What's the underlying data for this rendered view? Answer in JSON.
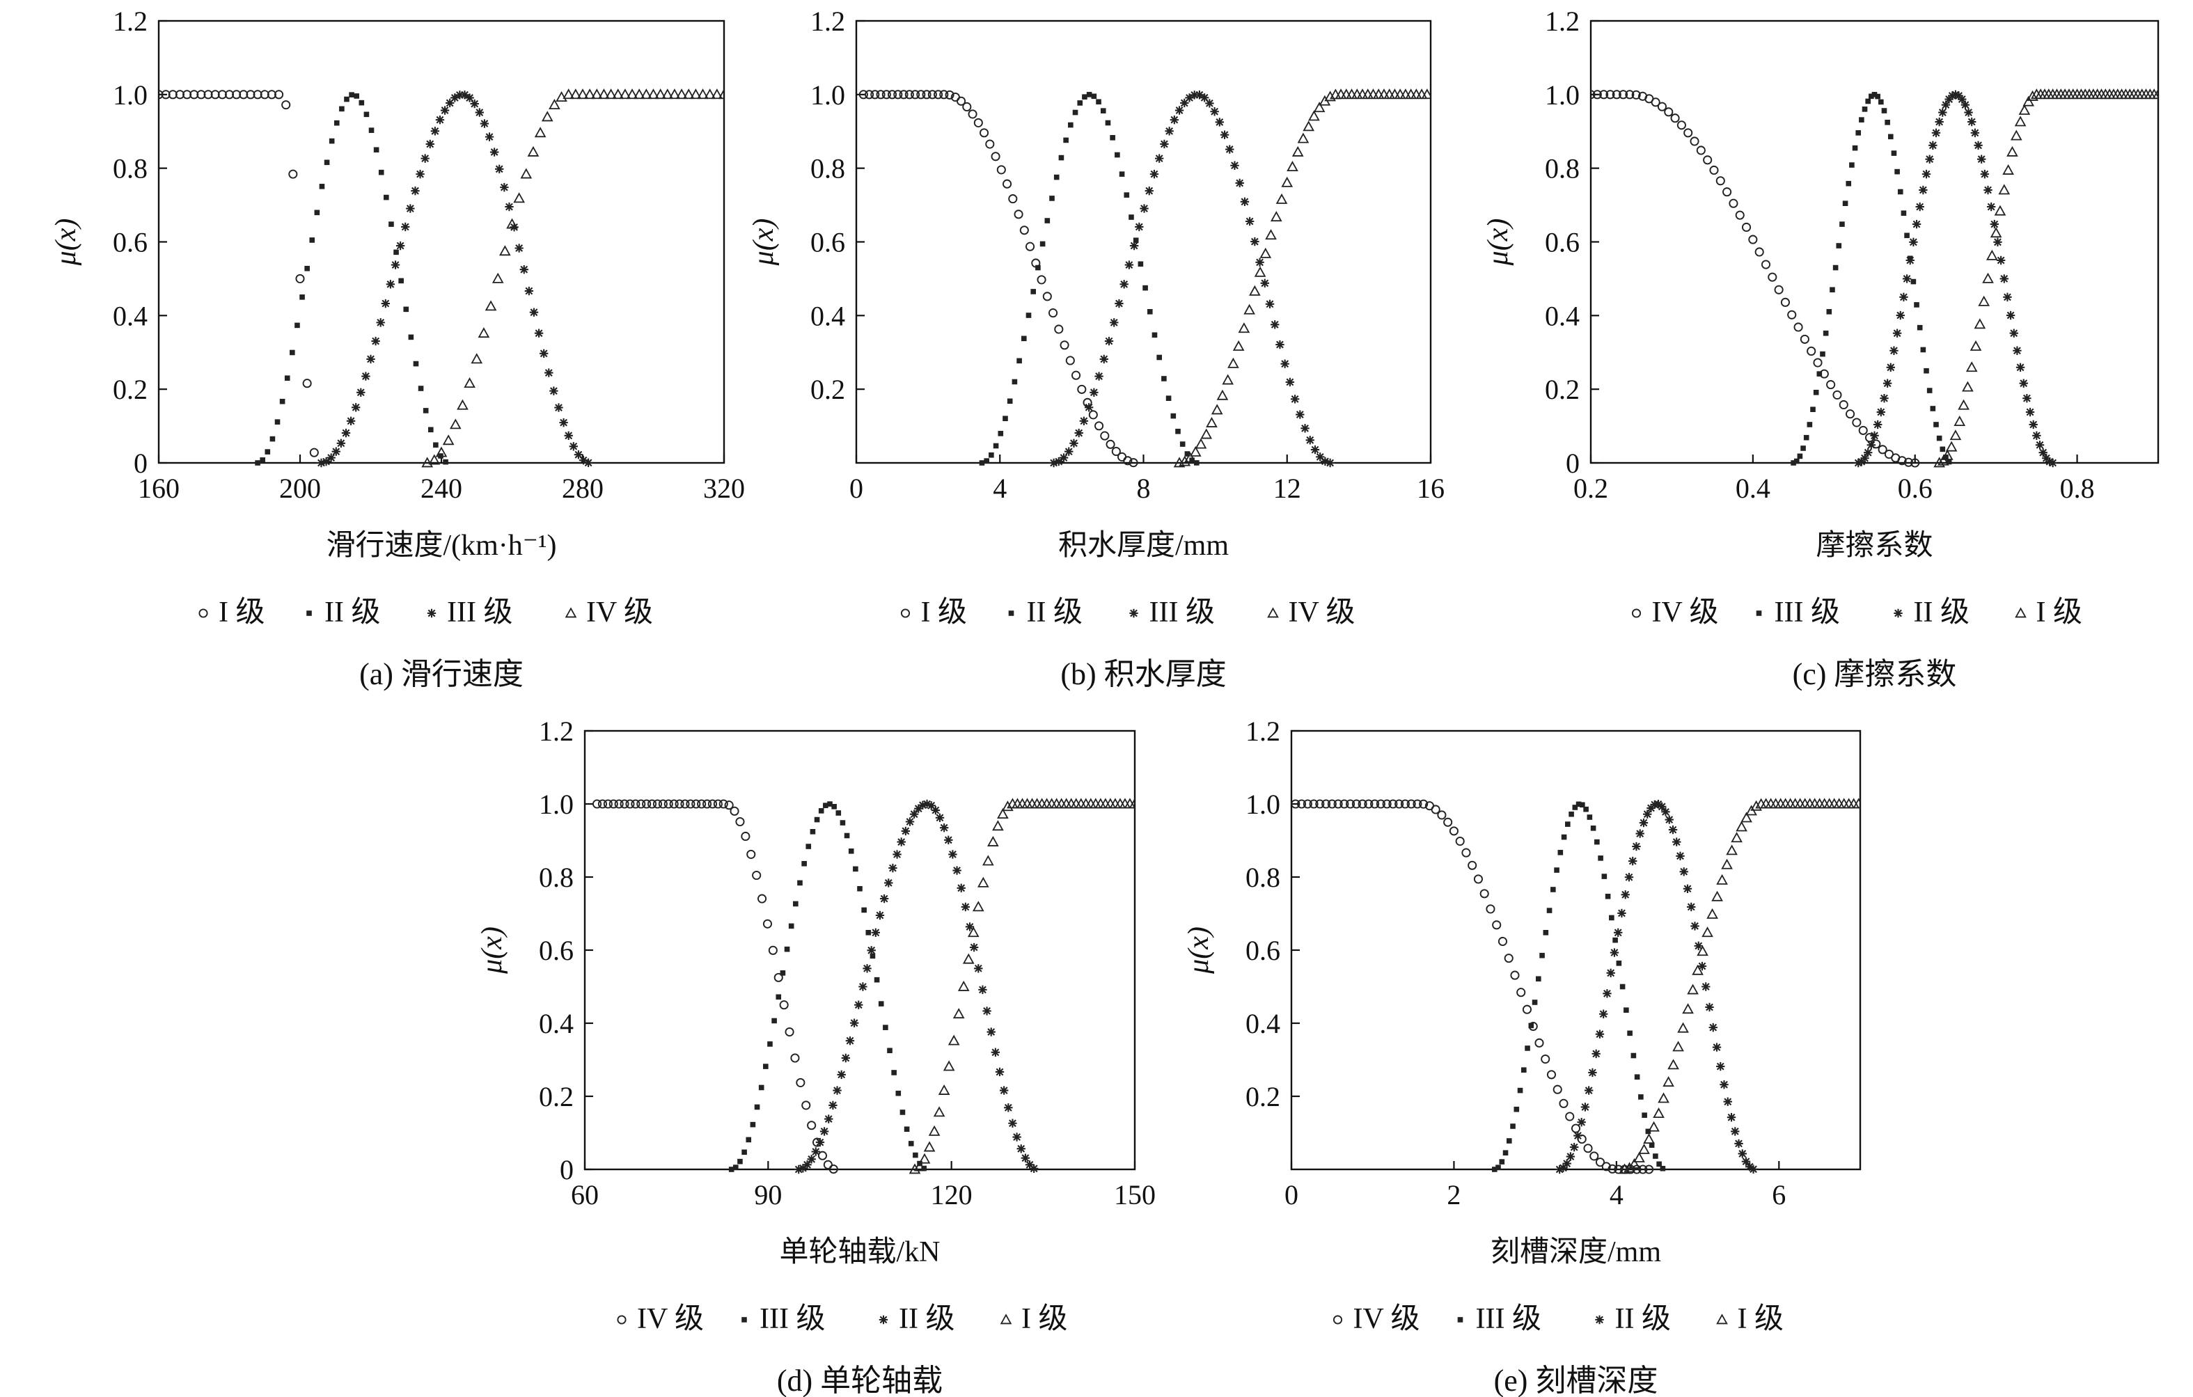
{
  "chart_data": [
    {
      "id": "a",
      "type": "scatter",
      "xlabel": "滑行速度/(km·h⁻¹)",
      "ylabel": "μ(x)",
      "xlim": [
        160,
        320
      ],
      "ylim": [
        0,
        1.2
      ],
      "xticks": [
        160,
        200,
        240,
        280,
        320
      ],
      "yticks": [
        0,
        0.2,
        0.4,
        0.6,
        0.8,
        1.0,
        1.2
      ],
      "ytick_labels": [
        "0",
        "0.2",
        "0.4",
        "0.6",
        "0.8",
        "1.0",
        "1.2"
      ],
      "caption": "(a) 滑行速度",
      "grid": false,
      "legend_position": "below",
      "series": [
        {
          "name": "I 级",
          "marker": "circle",
          "shape": "zfall",
          "a": 195,
          "b": 205,
          "range": [
            160,
            205
          ],
          "step": 2
        },
        {
          "name": "II 级",
          "marker": "square",
          "shape": "bell",
          "center": 215,
          "left_zero": 188,
          "right_zero": 242,
          "range": [
            188,
            242
          ],
          "step": 1.4
        },
        {
          "name": "III 级",
          "marker": "star",
          "shape": "bell",
          "center": 246,
          "left_zero": 206,
          "right_zero": 282,
          "range": [
            206,
            282
          ],
          "step": 1.4
        },
        {
          "name": "IV 级",
          "marker": "triangle",
          "shape": "srise",
          "a": 236,
          "b": 276,
          "range": [
            236,
            320
          ],
          "step": 2
        }
      ]
    },
    {
      "id": "b",
      "type": "scatter",
      "xlabel": "积水厚度/mm",
      "ylabel": "μ(x)",
      "xlim": [
        0,
        16
      ],
      "ylim": [
        0,
        1.2
      ],
      "xticks": [
        0,
        4,
        8,
        12,
        16
      ],
      "yticks": [
        0.2,
        0.4,
        0.6,
        0.8,
        1.0,
        1.2
      ],
      "ytick_labels": [
        "0.2",
        "0.4",
        "0.6",
        "0.8",
        "1.0",
        "1.2"
      ],
      "caption": "(b) 积水厚度",
      "grid": false,
      "legend_position": "below",
      "series": [
        {
          "name": "I 级",
          "marker": "circle",
          "shape": "zfall",
          "a": 2.5,
          "b": 7.8,
          "range": [
            0.2,
            7.8
          ],
          "step": 0.16
        },
        {
          "name": "II 级",
          "marker": "square",
          "shape": "bell",
          "center": 6.5,
          "left_zero": 3.5,
          "right_zero": 9.5,
          "range": [
            3.5,
            9.5
          ],
          "step": 0.13
        },
        {
          "name": "III 级",
          "marker": "star",
          "shape": "bell",
          "center": 9.5,
          "left_zero": 5.5,
          "right_zero": 13.2,
          "range": [
            5.5,
            13.2
          ],
          "step": 0.14
        },
        {
          "name": "IV 级",
          "marker": "triangle",
          "shape": "srise",
          "a": 9,
          "b": 13.4,
          "range": [
            9,
            16
          ],
          "step": 0.15
        }
      ]
    },
    {
      "id": "c",
      "type": "scatter",
      "xlabel": "摩擦系数",
      "ylabel": "μ(x)",
      "xlim": [
        0.2,
        0.9
      ],
      "ylim": [
        0,
        1.2
      ],
      "xticks": [
        0.2,
        0.4,
        0.6,
        0.8
      ],
      "yticks": [
        0,
        0.2,
        0.4,
        0.6,
        0.8,
        1.0,
        1.2
      ],
      "ytick_labels": [
        "0",
        "0.2",
        "0.4",
        "0.6",
        "0.8",
        "1.0",
        "1.2"
      ],
      "caption": "(c) 摩擦系数",
      "grid": false,
      "legend_position": "below",
      "series": [
        {
          "name": "IV 级",
          "marker": "circle",
          "shape": "zfall",
          "a": 0.25,
          "b": 0.6,
          "range": [
            0.2,
            0.6
          ],
          "step": 0.008
        },
        {
          "name": "III 级",
          "marker": "square",
          "shape": "bell",
          "center": 0.55,
          "left_zero": 0.45,
          "right_zero": 0.645,
          "range": [
            0.45,
            0.645
          ],
          "step": 0.004
        },
        {
          "name": "II 级",
          "marker": "star",
          "shape": "bell",
          "center": 0.65,
          "left_zero": 0.53,
          "right_zero": 0.77,
          "range": [
            0.53,
            0.77
          ],
          "step": 0.004
        },
        {
          "name": "I 级",
          "marker": "triangle",
          "shape": "srise",
          "a": 0.63,
          "b": 0.75,
          "range": [
            0.63,
            0.9
          ],
          "step": 0.005
        }
      ]
    },
    {
      "id": "d",
      "type": "scatter",
      "xlabel": "单轮轴载/kN",
      "ylabel": "μ(x)",
      "xlim": [
        60,
        150
      ],
      "ylim": [
        0,
        1.2
      ],
      "xticks": [
        60,
        90,
        120,
        150
      ],
      "yticks": [
        0,
        0.2,
        0.4,
        0.6,
        0.8,
        1.0,
        1.2
      ],
      "ytick_labels": [
        "0",
        "0.2",
        "0.4",
        "0.6",
        "0.8",
        "1.0",
        "1.2"
      ],
      "caption": "(d) 单轮轴载",
      "grid": false,
      "legend_position": "below",
      "series": [
        {
          "name": "IV 级",
          "marker": "circle",
          "shape": "zfall",
          "a": 83,
          "b": 101,
          "range": [
            62,
            101
          ],
          "step": 0.9
        },
        {
          "name": "III 级",
          "marker": "square",
          "shape": "bell",
          "center": 100,
          "left_zero": 84,
          "right_zero": 116,
          "range": [
            84,
            116
          ],
          "step": 0.7
        },
        {
          "name": "II 级",
          "marker": "star",
          "shape": "bell",
          "center": 116,
          "left_zero": 95,
          "right_zero": 134,
          "range": [
            95,
            134
          ],
          "step": 0.7
        },
        {
          "name": "I 级",
          "marker": "triangle",
          "shape": "srise",
          "a": 114,
          "b": 130,
          "range": [
            114,
            150
          ],
          "step": 0.8
        }
      ]
    },
    {
      "id": "e",
      "type": "scatter",
      "xlabel": "刻槽深度/mm",
      "ylabel": "μ(x)",
      "xlim": [
        0,
        7
      ],
      "ylim": [
        0,
        1.2
      ],
      "xticks": [
        0,
        2,
        4,
        6
      ],
      "yticks": [
        0.2,
        0.4,
        0.6,
        0.8,
        1.0,
        1.2
      ],
      "ytick_labels": [
        "0.2",
        "0.4",
        "0.6",
        "0.8",
        "1.0",
        "1.2"
      ],
      "caption": "(e) 刻槽深度",
      "grid": false,
      "legend_position": "below",
      "series": [
        {
          "name": "IV 级",
          "marker": "circle",
          "shape": "zfall",
          "a": 1.6,
          "b": 4.0,
          "range": [
            0.05,
            4.4
          ],
          "step": 0.075
        },
        {
          "name": "III 级",
          "marker": "square",
          "shape": "bell",
          "center": 3.55,
          "left_zero": 2.5,
          "right_zero": 4.6,
          "range": [
            2.5,
            4.6
          ],
          "step": 0.045
        },
        {
          "name": "II 级",
          "marker": "star",
          "shape": "bell",
          "center": 4.5,
          "left_zero": 3.3,
          "right_zero": 5.7,
          "range": [
            3.3,
            5.7
          ],
          "step": 0.045
        },
        {
          "name": "I 级",
          "marker": "triangle",
          "shape": "srise",
          "a": 4.1,
          "b": 5.8,
          "range": [
            4.1,
            7.0
          ],
          "step": 0.06
        }
      ]
    }
  ]
}
